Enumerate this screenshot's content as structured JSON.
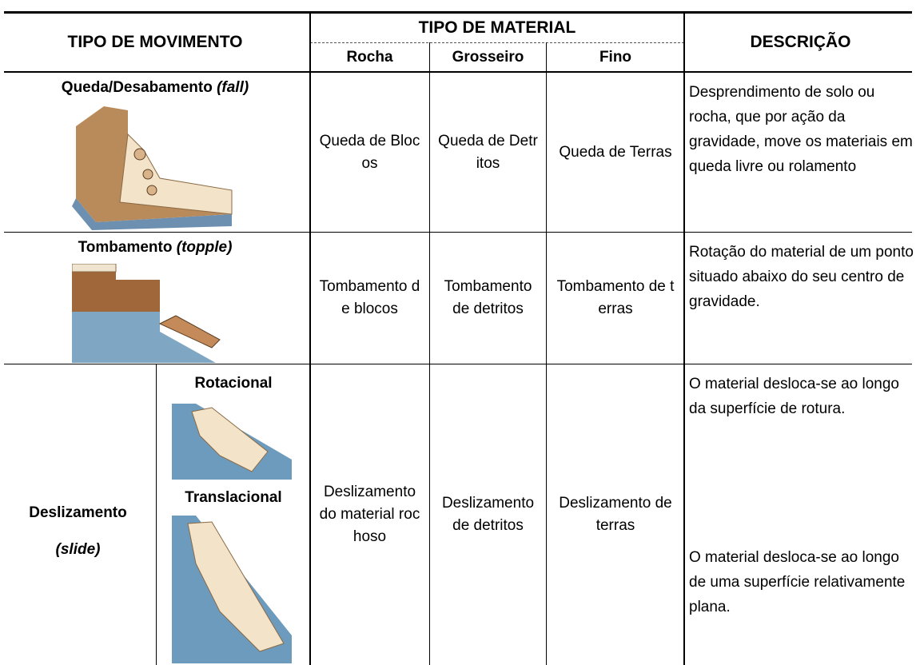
{
  "header": {
    "movement": "TIPO DE MOVIMENTO",
    "material": "TIPO DE MATERIAL",
    "materials": [
      "Rocha",
      "Grosseiro",
      "Fino"
    ],
    "description": "DESCRIÇÃO"
  },
  "rows": [
    {
      "name": "Queda/Desabamento",
      "term": "(fall)",
      "cells": [
        "Queda de Blocos",
        "Queda de Detritos",
        "Queda de Terras"
      ],
      "description": "Desprendimento de solo ou rocha, que por ação da gravidade, move os materiais em queda livre ou rolamento"
    },
    {
      "name": "Tombamento",
      "term": "(topple)",
      "cells": [
        "Tombamento de blocos",
        "Tombamento de detritos",
        "Tombamento de terras"
      ],
      "description": "Rotação do material de um ponto situado abaixo do seu centro de gravidade."
    },
    {
      "name": "Deslizamento",
      "term": "(slide)",
      "subtypes": [
        "Rotacional",
        "Translacional"
      ],
      "cells": [
        "Deslizamento do material rochoso",
        "Deslizamento de detritos",
        "Deslizamento de terras"
      ],
      "descriptions": [
        "O material desloca-se ao longo da superfície de rotura.",
        "O material desloca-se ao longo de uma superfície relativamente plana."
      ]
    }
  ]
}
